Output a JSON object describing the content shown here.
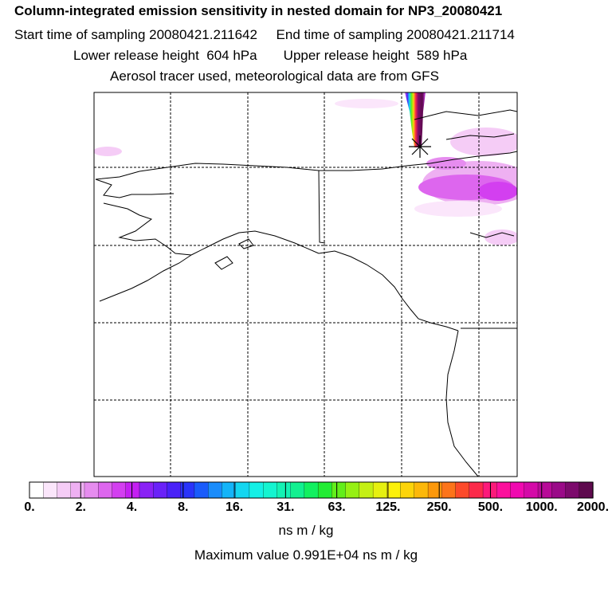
{
  "header": {
    "title": "Column-integrated emission sensitivity in nested domain for NP3_20080421",
    "line2": "Start time of sampling 20080421.211642     End time of sampling 20080421.211714",
    "line3": "Lower release height  604 hPa       Upper release height  589 hPa",
    "line4": "Aerosol tracer used, meteorological data are from GFS"
  },
  "colorbar": {
    "tick_labels": [
      "0.",
      "2.",
      "4.",
      "8.",
      "16.",
      "31.",
      "63.",
      "125.",
      "250.",
      "500.",
      "1000.",
      "2000."
    ],
    "colors": [
      "#ffffff",
      "#fbe6fb",
      "#f5ccf6",
      "#eeb0f2",
      "#e68cef",
      "#dd66ee",
      "#d33ff0",
      "#c41ff2",
      "#8a22f5",
      "#6a22f8",
      "#4a22f8",
      "#2a34fa",
      "#1a5cfb",
      "#1a8cfb",
      "#14b4f8",
      "#14d6f0",
      "#14f0e6",
      "#14f4d0",
      "#14f2b4",
      "#12f090",
      "#12f060",
      "#22ec34",
      "#62ee1a",
      "#96f014",
      "#c4f014",
      "#e6f010",
      "#fcf00a",
      "#fcd40a",
      "#fcb80a",
      "#fc980a",
      "#fc741a",
      "#fc4a2a",
      "#fc2a4a",
      "#fc1a7a",
      "#fc109c",
      "#f00ab0",
      "#d40aa8",
      "#b80a98",
      "#9a0a88",
      "#7c0a6c",
      "#5e0a4e"
    ],
    "units": "ns m / kg"
  },
  "max_value_text": "Maximum value  0.991E+04 ns m / kg",
  "map": {
    "grid": "dashed lat/lon grid",
    "marker": "release-location-star"
  }
}
